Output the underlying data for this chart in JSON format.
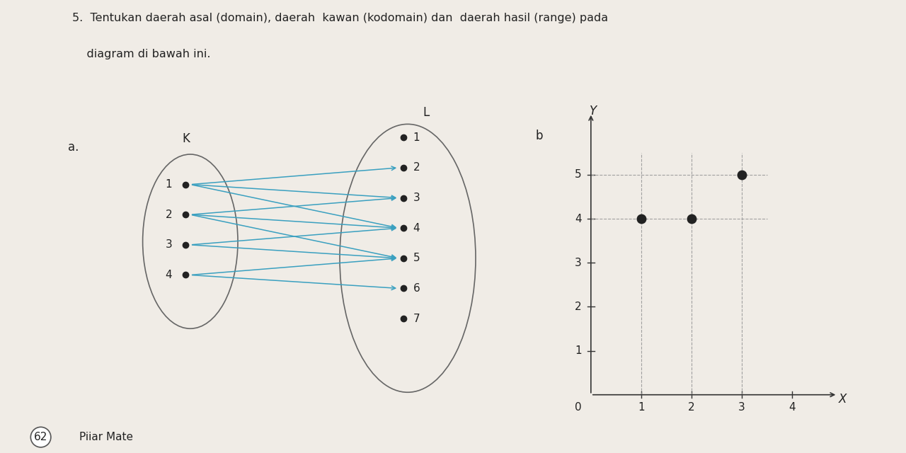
{
  "title_line1": "5.  Tentukan daerah asal (domain), daerah  kawan (kodomain) dan  daerah hasil (range) pada",
  "title_line2": "    diagram di bawah ini.",
  "label_a": "a.",
  "label_b": "b",
  "set_K_label": "K",
  "set_L_label": "L",
  "set_K_elements": [
    1,
    2,
    3,
    4
  ],
  "set_L_elements": [
    1,
    2,
    3,
    4,
    5,
    6,
    7
  ],
  "arrows": [
    [
      1,
      2
    ],
    [
      1,
      3
    ],
    [
      1,
      4
    ],
    [
      2,
      3
    ],
    [
      2,
      4
    ],
    [
      2,
      5
    ],
    [
      3,
      4
    ],
    [
      3,
      5
    ],
    [
      4,
      5
    ],
    [
      4,
      6
    ]
  ],
  "points_b": [
    [
      1,
      4
    ],
    [
      2,
      4
    ],
    [
      3,
      5
    ]
  ],
  "bg_color": "#f0ece6",
  "oval_color": "#666666",
  "arrow_color": "#3aa0c0",
  "dot_color_K": "#222222",
  "dot_color_L": "#222222",
  "grid_color": "#999999",
  "axis_color": "#333333",
  "text_color": "#222222",
  "page_num": "62",
  "page_label": "Piiar Mate"
}
